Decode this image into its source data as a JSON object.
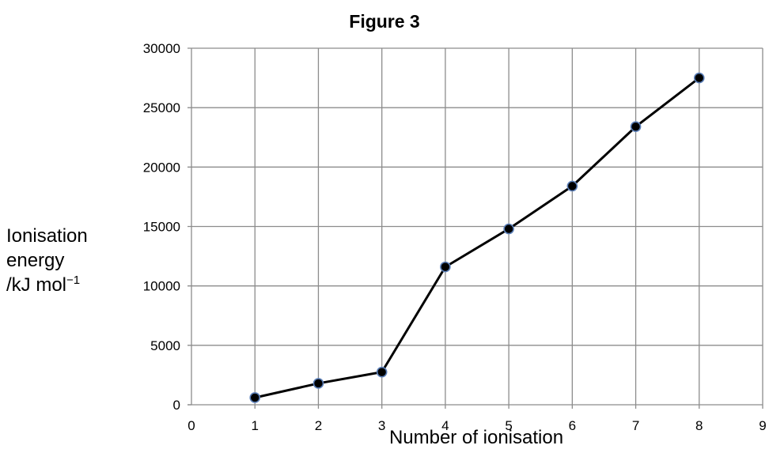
{
  "chart_data": {
    "type": "scatter",
    "title": "Figure 3",
    "xlabel": "Number of ionisation",
    "ylabel": {
      "line1": "Ionisation",
      "line2": "energy",
      "line3_main": "/kJ mol",
      "line3_sup": "−1"
    },
    "xlim": [
      0,
      9
    ],
    "ylim": [
      0,
      30000
    ],
    "x_ticks": [
      0,
      1,
      2,
      3,
      4,
      5,
      6,
      7,
      8,
      9
    ],
    "y_ticks": [
      0,
      5000,
      10000,
      15000,
      20000,
      25000,
      30000
    ],
    "grid": true,
    "legend": "none",
    "connect_points": true,
    "series": [
      {
        "x": [
          1,
          2,
          3,
          4,
          5,
          6,
          7,
          8
        ],
        "y": [
          600,
          1800,
          2750,
          11600,
          14800,
          18400,
          23400,
          27500
        ]
      }
    ],
    "colors": {
      "line": "#000000",
      "marker_fill": "#000000",
      "marker_edge": "#5b7fb8",
      "grid": "#8c8c8c"
    }
  }
}
